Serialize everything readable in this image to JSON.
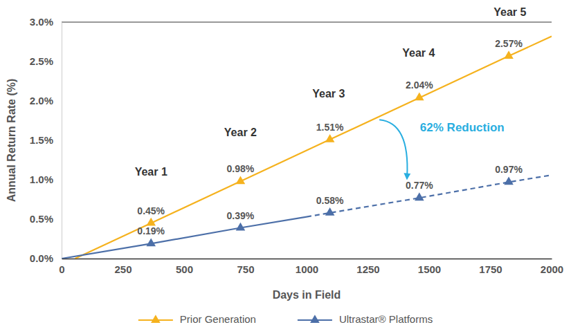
{
  "chart_data": {
    "type": "line",
    "x_label": "Days in Field",
    "y_label": "Annual Return Rate (%)",
    "xlim": [
      0,
      2000
    ],
    "xticks": [
      0,
      250,
      500,
      750,
      1000,
      1250,
      1500,
      1750,
      2000
    ],
    "ylim": [
      0,
      3.0
    ],
    "yticks": [
      {
        "value": 0,
        "label": "0.0%"
      },
      {
        "value": 0.5,
        "label": "0.5%"
      },
      {
        "value": 1.0,
        "label": "1.0%"
      },
      {
        "value": 1.5,
        "label": "1.5%"
      },
      {
        "value": 2.0,
        "label": "2.0%"
      },
      {
        "value": 2.5,
        "label": "2.5%"
      },
      {
        "value": 3.0,
        "label": "3.0%"
      }
    ],
    "grid": false,
    "legend": "bottom",
    "data_labels": true,
    "series": [
      {
        "name": "Prior Generation",
        "color": "#f5b21e",
        "marker": "triangle",
        "line_style": "solid",
        "x": [
          55,
          365,
          730,
          1095,
          1460,
          1825,
          2000
        ],
        "values": [
          0,
          0.45,
          0.98,
          1.51,
          2.04,
          2.57,
          2.82
        ],
        "value_labels": [
          null,
          "0.45%",
          "0.98%",
          "1.51%",
          "2.04%",
          "2.57%",
          null
        ]
      },
      {
        "name": "Ultrastar® Platforms",
        "color": "#4c6fa8",
        "marker": "triangle",
        "line_style": "solid",
        "projected_from": 1000,
        "x": [
          0,
          365,
          730,
          1000,
          1095,
          1460,
          1825,
          2000
        ],
        "values": [
          0,
          0.19,
          0.39,
          0.53,
          0.58,
          0.77,
          0.97,
          1.06
        ],
        "value_labels": [
          null,
          "0.19%",
          "0.39%",
          null,
          "0.58%",
          "0.77%",
          "0.97%",
          null
        ]
      }
    ],
    "annotations": [
      {
        "text": "Year 1",
        "x": 365,
        "y": 1.09
      },
      {
        "text": "Year 2",
        "x": 730,
        "y": 1.59
      },
      {
        "text": "Year 3",
        "x": 1090,
        "y": 2.08
      },
      {
        "text": "Year 4",
        "x": 1457,
        "y": 2.6
      },
      {
        "text": "Year 5",
        "x": 1830,
        "y": 3.12
      },
      {
        "text": "62% Reduction",
        "x": 1635,
        "y": 1.65,
        "arrow": {
          "x": [
            1297,
            1410
          ],
          "values": [
            1.76,
            1.04
          ]
        }
      }
    ]
  }
}
